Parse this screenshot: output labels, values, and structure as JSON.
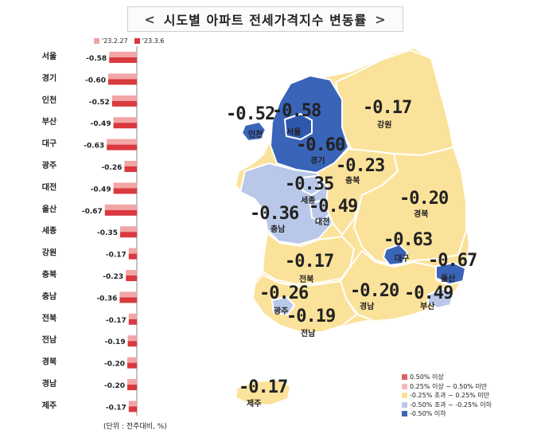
{
  "title": "시도별 아파트 전세가격지수 변동률",
  "title_chevrons": {
    "left": "<",
    "right": ">"
  },
  "legend_top": [
    {
      "label": "'23.2.27",
      "color": "#f2a5a5"
    },
    {
      "label": "'23.3.6",
      "color": "#d9393f"
    }
  ],
  "unit_note": "(단위 : 전주대비, %)",
  "chart_data": {
    "type": "bar",
    "orientation": "horizontal",
    "categories": [
      "서울",
      "경기",
      "인천",
      "부산",
      "대구",
      "광주",
      "대전",
      "울산",
      "세종",
      "강원",
      "충북",
      "충남",
      "전북",
      "전남",
      "경북",
      "경남",
      "제주"
    ],
    "series": [
      {
        "name": "'23.2.27",
        "values": [
          -0.58,
          -0.6,
          -0.52,
          -0.49,
          -0.63,
          -0.26,
          -0.49,
          -0.67,
          -0.35,
          -0.17,
          -0.23,
          -0.36,
          -0.17,
          -0.19,
          -0.2,
          -0.2,
          -0.17
        ]
      },
      {
        "name": "'23.3.6",
        "values": [
          -0.58,
          -0.6,
          -0.52,
          -0.49,
          -0.63,
          -0.26,
          -0.49,
          -0.67,
          -0.35,
          -0.17,
          -0.23,
          -0.36,
          -0.17,
          -0.19,
          -0.2,
          -0.2,
          -0.17
        ]
      }
    ],
    "data_labels": [
      "-0.58",
      "-0.60",
      "-0.52",
      "-0.49",
      "-0.63",
      "-0.26",
      "-0.49",
      "-0.67",
      "-0.35",
      "-0.17",
      "-0.23",
      "-0.36",
      "-0.17",
      "-0.19",
      "-0.20",
      "-0.20",
      "-0.17"
    ]
  },
  "map_regions": [
    {
      "name": "서울",
      "value": "-0.58"
    },
    {
      "name": "인천",
      "value": "-0.52"
    },
    {
      "name": "경기",
      "value": "-0.60"
    },
    {
      "name": "강원",
      "value": "-0.17"
    },
    {
      "name": "충북",
      "value": "-0.23"
    },
    {
      "name": "세종",
      "value": "-0.35"
    },
    {
      "name": "대전",
      "value": "-0.49"
    },
    {
      "name": "충남",
      "value": "-0.36"
    },
    {
      "name": "경북",
      "value": "-0.20"
    },
    {
      "name": "대구",
      "value": "-0.63"
    },
    {
      "name": "울산",
      "value": "-0.67"
    },
    {
      "name": "전북",
      "value": "-0.17"
    },
    {
      "name": "광주",
      "value": "-0.26"
    },
    {
      "name": "경남",
      "value": "-0.20"
    },
    {
      "name": "부산",
      "value": "-0.49"
    },
    {
      "name": "전남",
      "value": "-0.19"
    },
    {
      "name": "제주",
      "value": "-0.17"
    }
  ],
  "map_legend": [
    {
      "label": "0.50% 이상",
      "color": "#e06060"
    },
    {
      "label": "0.25% 이상 ~ 0.50% 미만",
      "color": "#f4b8b8"
    },
    {
      "label": "-0.25% 초과 ~ 0.25% 미만",
      "color": "#fbe29a"
    },
    {
      "label": "-0.50% 초과 ~ -0.25% 이하",
      "color": "#b9c8e8"
    },
    {
      "label": "-0.50% 이하",
      "color": "#3a64b8"
    }
  ]
}
